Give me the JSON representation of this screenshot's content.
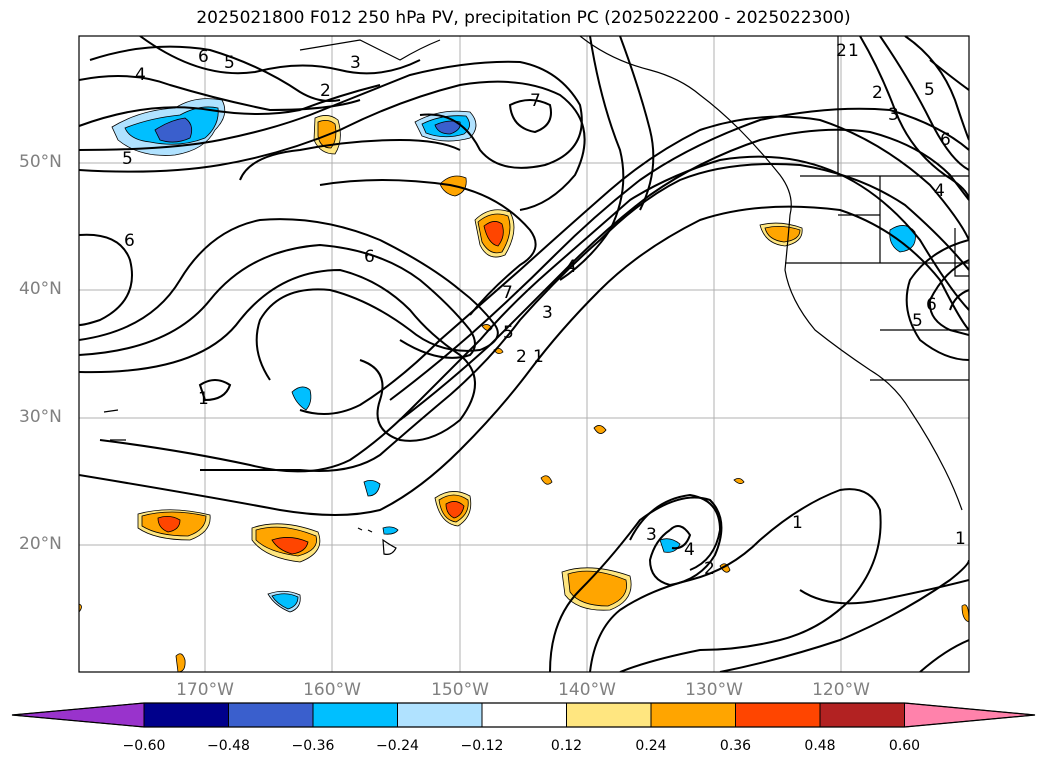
{
  "title": "2025021800 F012 250 hPa PV, precipitation PC (2025022200 - 2025022300)",
  "latitude_labels": [
    "50°N",
    "40°N",
    "30°N",
    "20°N"
  ],
  "longitude_labels": [
    "170°W",
    "160°W",
    "150°W",
    "140°W",
    "130°W",
    "120°W"
  ],
  "colorbar": {
    "tick_labels": [
      "−0.60",
      "−0.48",
      "−0.36",
      "−0.24",
      "−0.12",
      "0.12",
      "0.24",
      "0.36",
      "0.48",
      "0.60"
    ],
    "colors": [
      "#9933cc",
      "#00008b",
      "#3a5fcd",
      "#00bfff",
      "#b0e2ff",
      "#ffffff",
      "#ffe680",
      "#ffa500",
      "#ff4500",
      "#b22222",
      "#ff82ab"
    ]
  },
  "contour_labels": [
    "6",
    "5",
    "4",
    "5",
    "2",
    "3",
    "7",
    "6",
    "6",
    "4",
    "3",
    "5",
    "2",
    "1",
    "7",
    "1",
    "3",
    "4",
    "2",
    "1",
    "1",
    "2",
    "3",
    "5",
    "6",
    "4",
    "6",
    "5",
    "2",
    "1"
  ],
  "colors": {
    "contour": "#000000",
    "grid": "#b0b0b0",
    "coast": "#000000"
  }
}
